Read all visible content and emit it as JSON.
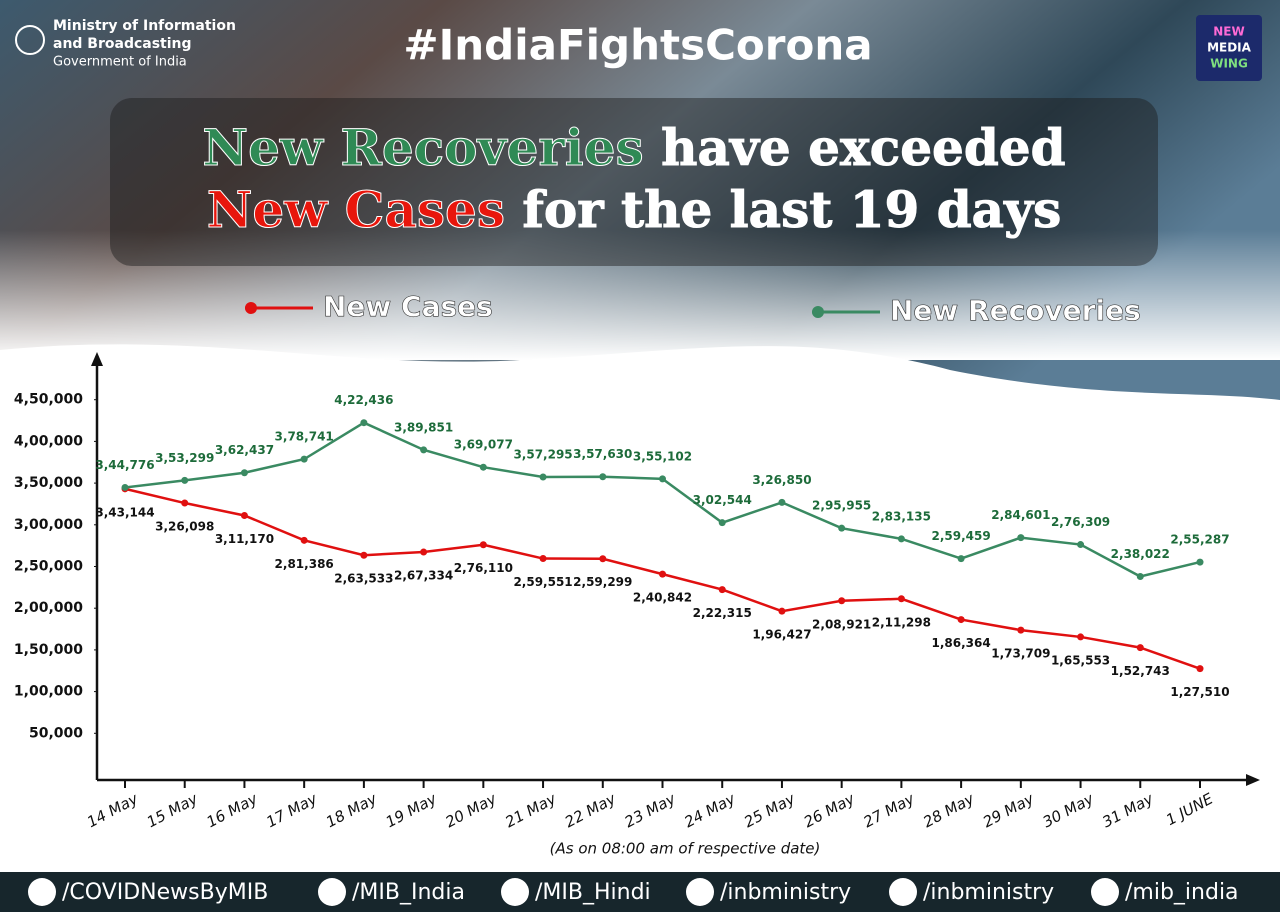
{
  "header": {
    "ministry": [
      "Ministry of Information",
      "and Broadcasting"
    ],
    "government": "Government of India",
    "hashtag": "#IndiaFightsCorona",
    "logo": [
      "NEW",
      "MEDIA",
      "WING"
    ]
  },
  "headline": [
    "New Recoveries",
    "have exceeded",
    "New Cases",
    "for the last 19 days"
  ],
  "chart_data": {
    "type": "line",
    "note": "(As on 08:00 am of respective date)",
    "categories": [
      "14 May",
      "15 May",
      "16 May",
      "17 May",
      "18 May",
      "19 May",
      "20 May",
      "21 May",
      "22 May",
      "23 May",
      "24 May",
      "25 May",
      "26 May",
      "27 May",
      "28 May",
      "29 May",
      "30 May",
      "31 May",
      "1 JUNE"
    ],
    "series": [
      {
        "name": "New Cases",
        "color": "#e01010",
        "values": [
          343144,
          326098,
          311170,
          281386,
          263533,
          267334,
          276110,
          259551,
          259299,
          240842,
          222315,
          196427,
          208921,
          211298,
          186364,
          173709,
          165553,
          152743,
          127510
        ],
        "value_labels": [
          "3,43,144",
          "3,26,098",
          "3,11,170",
          "2,81,386",
          "2,63,533",
          "2,67,334",
          "2,76,110",
          "2,59,551",
          "2,59,299",
          "2,40,842",
          "2,22,315",
          "1,96,427",
          "2,08,921",
          "2,11,298",
          "1,86,364",
          "1,73,709",
          "1,65,553",
          "1,52,743",
          "1,27,510"
        ]
      },
      {
        "name": "New Recoveries",
        "color": "#3a8a62",
        "values": [
          344776,
          353299,
          362437,
          378741,
          422436,
          389851,
          369077,
          357295,
          357630,
          355102,
          302544,
          326850,
          295955,
          283135,
          259459,
          284601,
          276309,
          238022,
          255287
        ],
        "value_labels": [
          "3,44,776",
          "3,53,299",
          "3,62,437",
          "3,78,741",
          "4,22,436",
          "3,89,851",
          "3,69,077",
          "3,57,295",
          "3,57,630",
          "3,55,102",
          "3,02,544",
          "3,26,850",
          "2,95,955",
          "2,83,135",
          "2,59,459",
          "2,84,601",
          "2,76,309",
          "2,38,022",
          "2,55,287"
        ]
      }
    ],
    "ylim": [
      0,
      500000
    ],
    "yticks": [
      {
        "value": 50000,
        "label": "50,000"
      },
      {
        "value": 100000,
        "label": "1,00,000"
      },
      {
        "value": 150000,
        "label": "1,50,000"
      },
      {
        "value": 200000,
        "label": "2,00,000"
      },
      {
        "value": 250000,
        "label": "2,50,000"
      },
      {
        "value": 300000,
        "label": "3,00,000"
      },
      {
        "value": 350000,
        "label": "3,50,000"
      },
      {
        "value": 400000,
        "label": "4,00,000"
      },
      {
        "value": 450000,
        "label": "4,50,000"
      }
    ],
    "grid": false,
    "legend": "top"
  },
  "footer": {
    "handles": [
      "/COVIDNewsByMIB",
      "/MIB_India",
      "/MIB_Hindi",
      "/inbministry",
      "/inbministry",
      "/mib_india"
    ]
  }
}
